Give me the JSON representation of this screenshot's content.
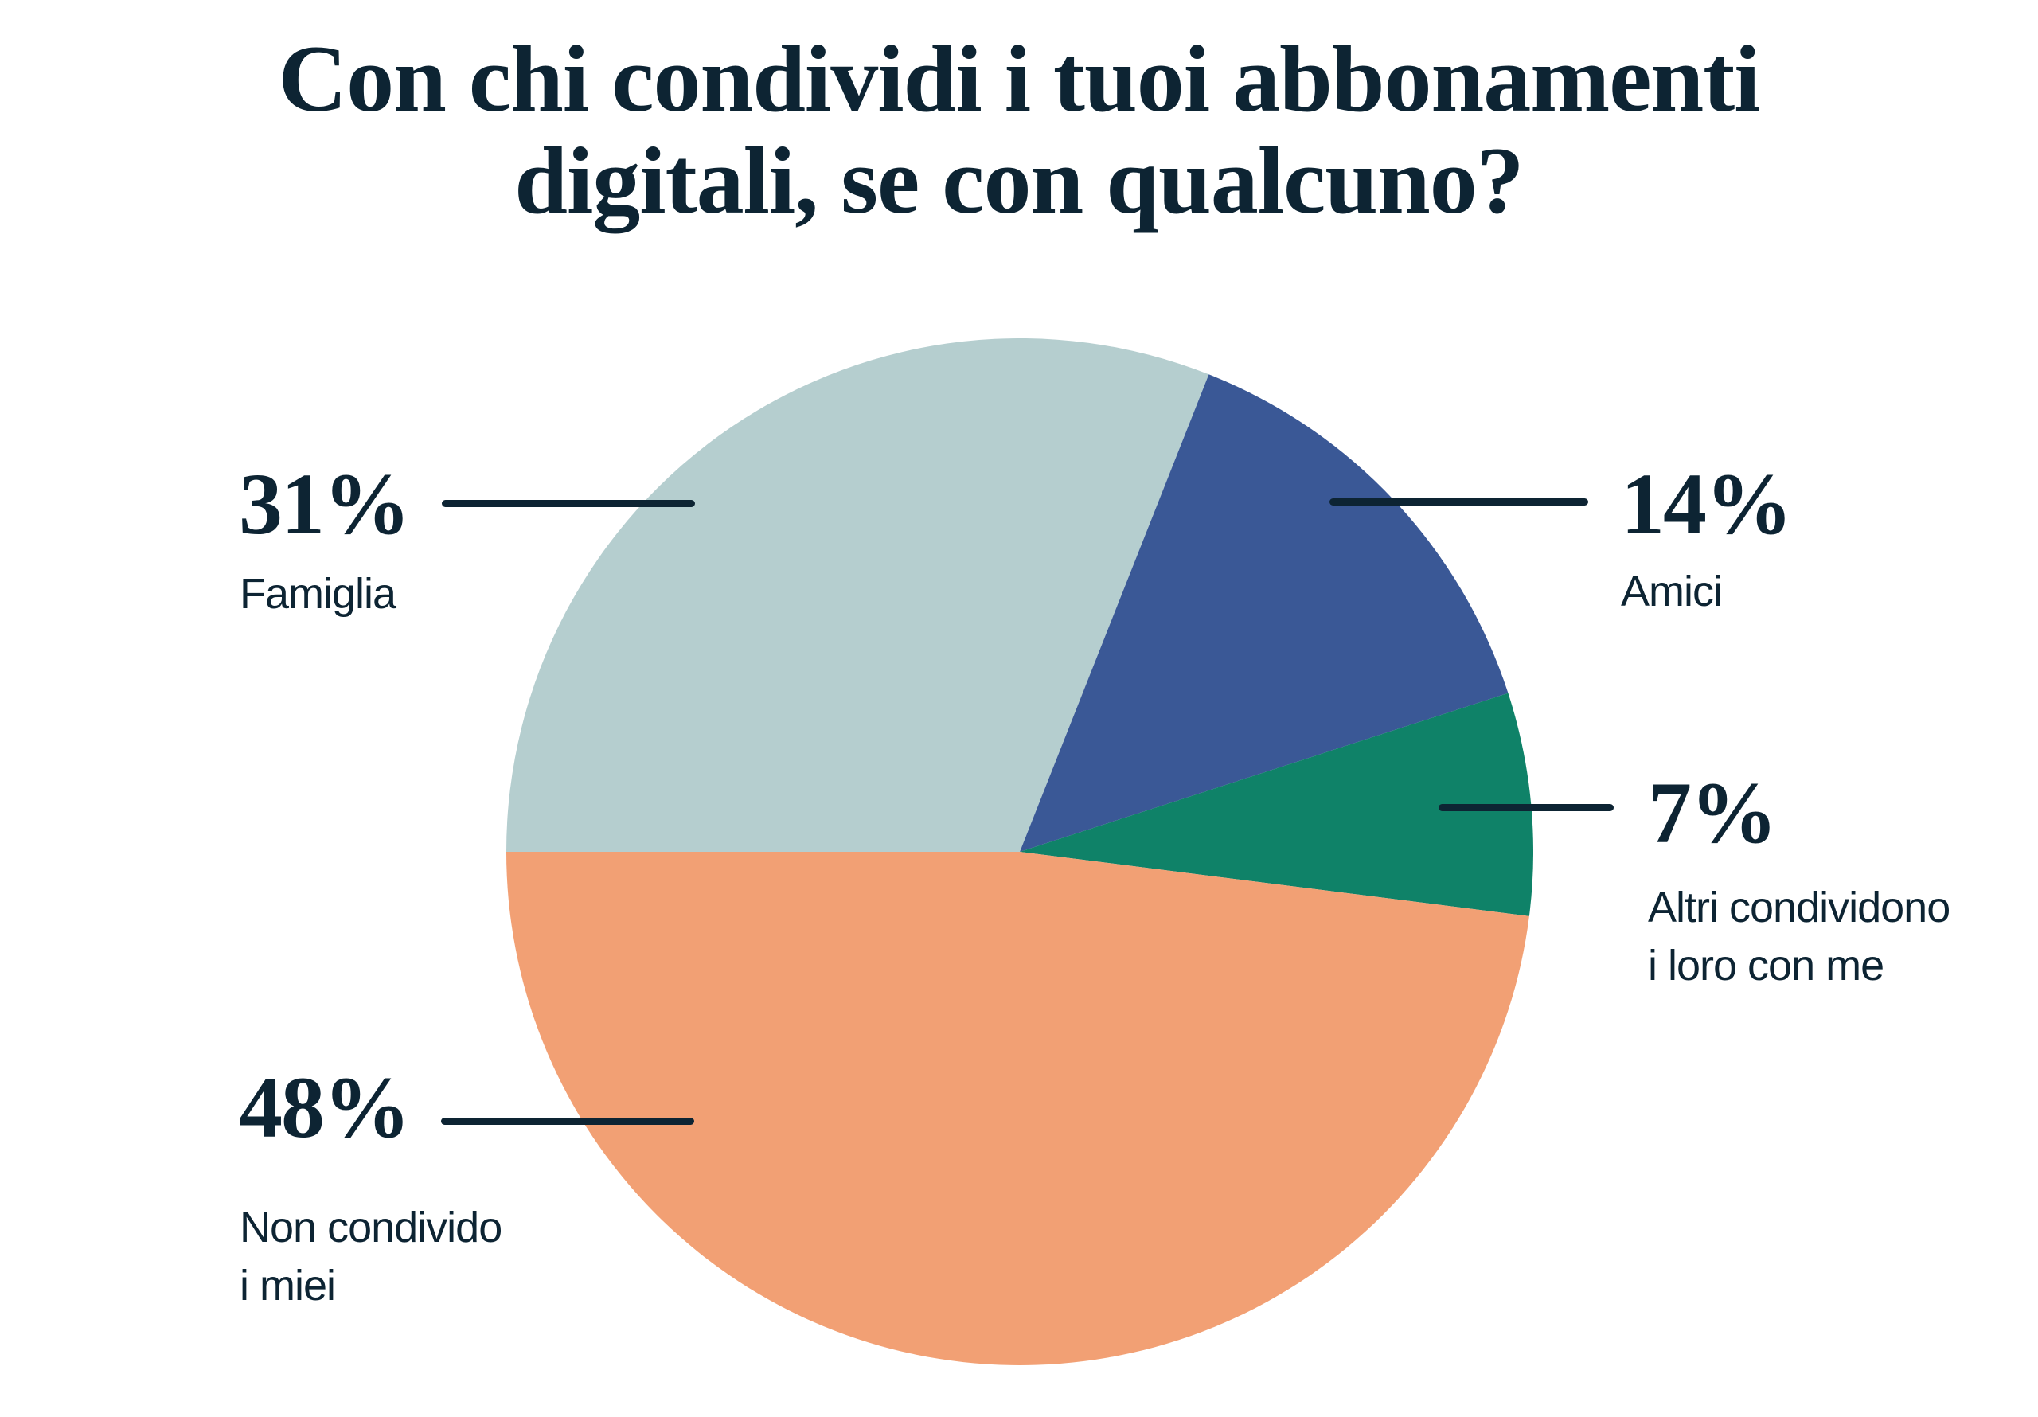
{
  "page": {
    "background_color": "#ffffff",
    "text_color": "#0d2433"
  },
  "title": {
    "line1": "Con chi condividi i tuoi abbonamenti",
    "line2": "digitali, se con qualcuno?"
  },
  "chart_data": {
    "type": "pie",
    "title": "Con chi condividi i tuoi abbonamenti digitali, se con qualcuno?",
    "unit": "%",
    "start_angle_deg": 270,
    "direction": "clockwise",
    "legend_position": "callout-labels",
    "slices": [
      {
        "label": "Famiglia",
        "label_lines": [
          "Famiglia"
        ],
        "value": 31,
        "value_display": "31%",
        "color": "#b5cecf",
        "callout_side": "left"
      },
      {
        "label": "Amici",
        "label_lines": [
          "Amici"
        ],
        "value": 14,
        "value_display": "14%",
        "color": "#3a5896",
        "callout_side": "right"
      },
      {
        "label": "Altri condividono i loro con me",
        "label_lines": [
          "Altri condividono",
          "i loro con me"
        ],
        "value": 7,
        "value_display": "7%",
        "color": "#0f8268",
        "callout_side": "right"
      },
      {
        "label": "Non condivido i miei",
        "label_lines": [
          "Non condivido",
          "i miei"
        ],
        "value": 48,
        "value_display": "48%",
        "color": "#f2a074",
        "callout_side": "left"
      }
    ]
  }
}
